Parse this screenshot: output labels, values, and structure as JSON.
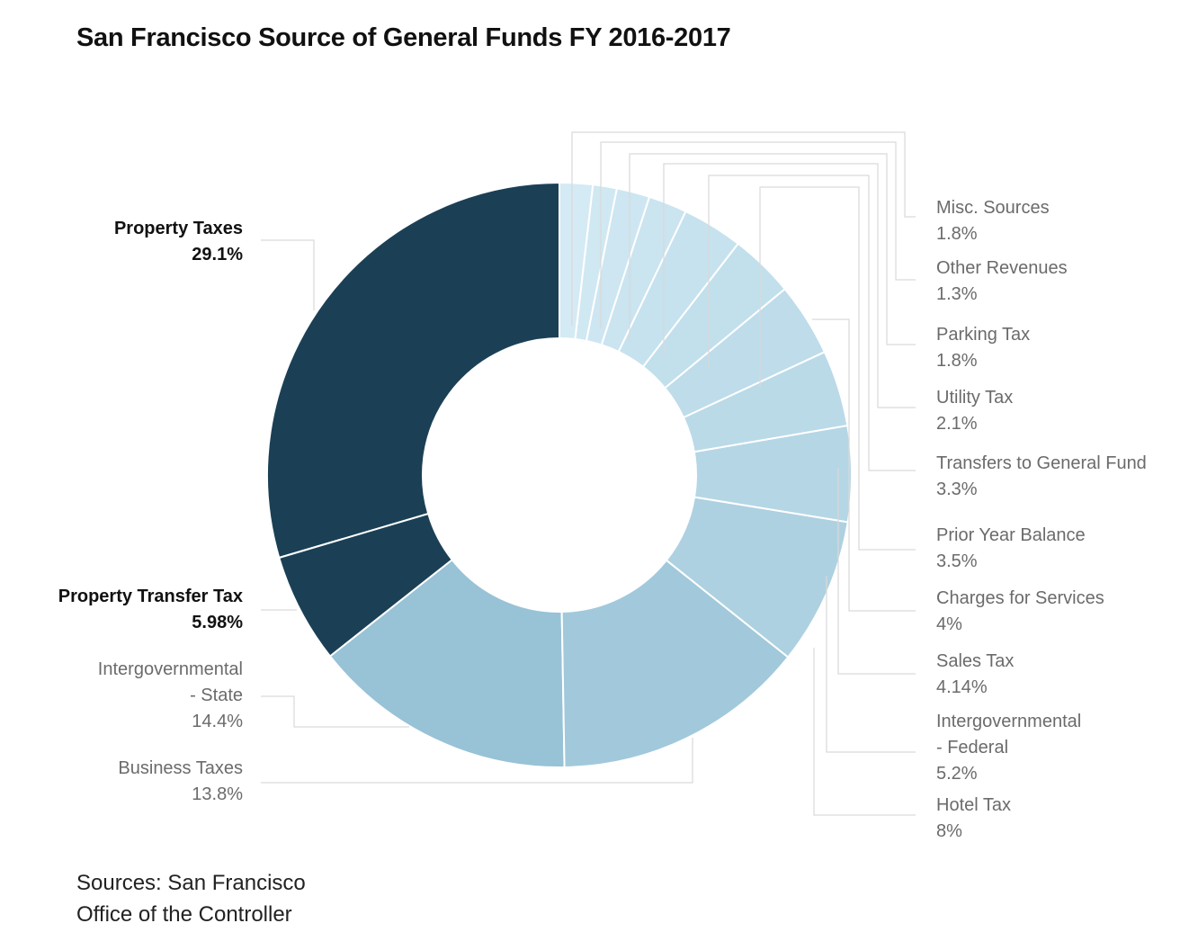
{
  "chart_data": {
    "type": "pie",
    "donut": true,
    "title": "San Francisco Source of General Funds FY 2016-2017",
    "unit": "%",
    "slices": [
      {
        "label": "Property Taxes",
        "value": 29.1,
        "value_label": "29.1%",
        "color": "#1b4055",
        "emphasis": true,
        "side": "left"
      },
      {
        "label": "Property Transfer Tax",
        "value": 5.98,
        "value_label": "5.98%",
        "color": "#1b4055",
        "emphasis": true,
        "side": "left"
      },
      {
        "label": "Intergovernmental - State",
        "value": 14.4,
        "value_label": "14.4%",
        "color": "#98c2d6",
        "emphasis": false,
        "side": "left"
      },
      {
        "label": "Business Taxes",
        "value": 13.8,
        "value_label": "13.8%",
        "color": "#a1c9db",
        "emphasis": false,
        "side": "left"
      },
      {
        "label": "Hotel Tax",
        "value": 8,
        "value_label": "8%",
        "color": "#aed1e1",
        "emphasis": false,
        "side": "right"
      },
      {
        "label": "Intergovernmental - Federal",
        "value": 5.2,
        "value_label": "5.2%",
        "color": "#b5d6e5",
        "emphasis": false,
        "side": "right"
      },
      {
        "label": "Sales Tax",
        "value": 4.14,
        "value_label": "4.14%",
        "color": "#badae8",
        "emphasis": false,
        "side": "right"
      },
      {
        "label": "Charges for Services",
        "value": 4,
        "value_label": "4%",
        "color": "#bedcea",
        "emphasis": false,
        "side": "right"
      },
      {
        "label": "Prior Year Balance",
        "value": 3.5,
        "value_label": "3.5%",
        "color": "#c2dfec",
        "emphasis": false,
        "side": "right"
      },
      {
        "label": "Transfers to General Fund",
        "value": 3.3,
        "value_label": "3.3%",
        "color": "#c6e2ee",
        "emphasis": false,
        "side": "right"
      },
      {
        "label": "Utility Tax",
        "value": 2.1,
        "value_label": "2.1%",
        "color": "#cae4f0",
        "emphasis": false,
        "side": "right"
      },
      {
        "label": "Parking Tax",
        "value": 1.8,
        "value_label": "1.8%",
        "color": "#cde6f1",
        "emphasis": false,
        "side": "right"
      },
      {
        "label": "Other Revenues",
        "value": 1.3,
        "value_label": "1.3%",
        "color": "#d0e8f2",
        "emphasis": false,
        "side": "right"
      },
      {
        "label": "Misc. Sources",
        "value": 1.8,
        "value_label": "1.8%",
        "color": "#d4eaf4",
        "emphasis": false,
        "side": "right"
      }
    ]
  },
  "labels_display": {
    "property_taxes": [
      "Property Taxes",
      "29.1%"
    ],
    "property_transfer_tax": [
      "Property Transfer Tax",
      "5.98%"
    ],
    "intergov_state": [
      "Intergovernmental",
      "- State",
      "14.4%"
    ],
    "business_taxes": [
      "Business Taxes",
      "13.8%"
    ],
    "hotel_tax": [
      "Hotel Tax",
      "8%"
    ],
    "intergov_federal": [
      "Intergovernmental",
      "- Federal",
      "5.2%"
    ],
    "sales_tax": [
      "Sales Tax",
      "4.14%"
    ],
    "charges_for_services": [
      "Charges for Services",
      "4%"
    ],
    "prior_year_balance": [
      "Prior Year Balance",
      "3.5%"
    ],
    "transfers_to_general_fund": [
      "Transfers to General Fund",
      "3.3%"
    ],
    "utility_tax": [
      "Utility Tax",
      "2.1%"
    ],
    "parking_tax": [
      "Parking Tax",
      "1.8%"
    ],
    "other_revenues": [
      "Other Revenues",
      "1.3%"
    ],
    "misc_sources": [
      "Misc. Sources",
      "1.8%"
    ]
  },
  "source_note": "Sources: San Francisco Office of the Controller"
}
